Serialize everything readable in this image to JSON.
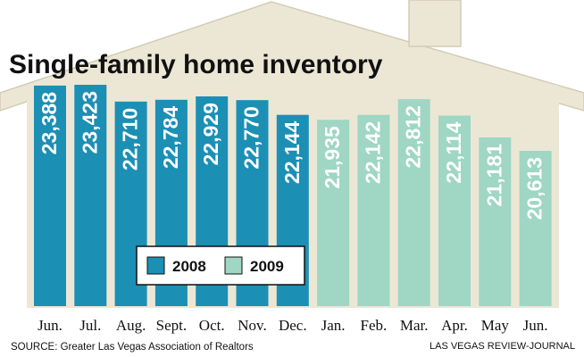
{
  "chart_data": {
    "type": "bar",
    "title": "Single-family home inventory",
    "categories": [
      "Jun.",
      "Jul.",
      "Aug.",
      "Sept.",
      "Oct.",
      "Nov.",
      "Dec.",
      "Jan.",
      "Feb.",
      "Mar.",
      "Apr.",
      "May",
      "Jun."
    ],
    "value_labels": [
      "23,388",
      "23,423",
      "22,710",
      "22,784",
      "22,929",
      "22,770",
      "22,144",
      "21,935",
      "22,142",
      "22,812",
      "22,114",
      "21,181",
      "20,613"
    ],
    "series": [
      {
        "name": "2008",
        "color": "#1c8fb5",
        "values": [
          23388,
          23423,
          22710,
          22784,
          22929,
          22770,
          22144,
          null,
          null,
          null,
          null,
          null,
          null
        ]
      },
      {
        "name": "2009",
        "color": "#9fd6c4",
        "values": [
          null,
          null,
          null,
          null,
          null,
          null,
          null,
          21935,
          22142,
          22812,
          22114,
          21181,
          20613
        ]
      }
    ],
    "legend": "bottom-center",
    "grid": false,
    "source": "SOURCE: Greater Las Vegas Association of Realtors",
    "credit": "LAS VEGAS REVIEW-JOURNAL"
  },
  "colors": {
    "house": "#ece7d5",
    "house_edge": "#d2ccb6",
    "bar_2008": "#1c8fb5",
    "bar_2009": "#9fd6c4"
  }
}
